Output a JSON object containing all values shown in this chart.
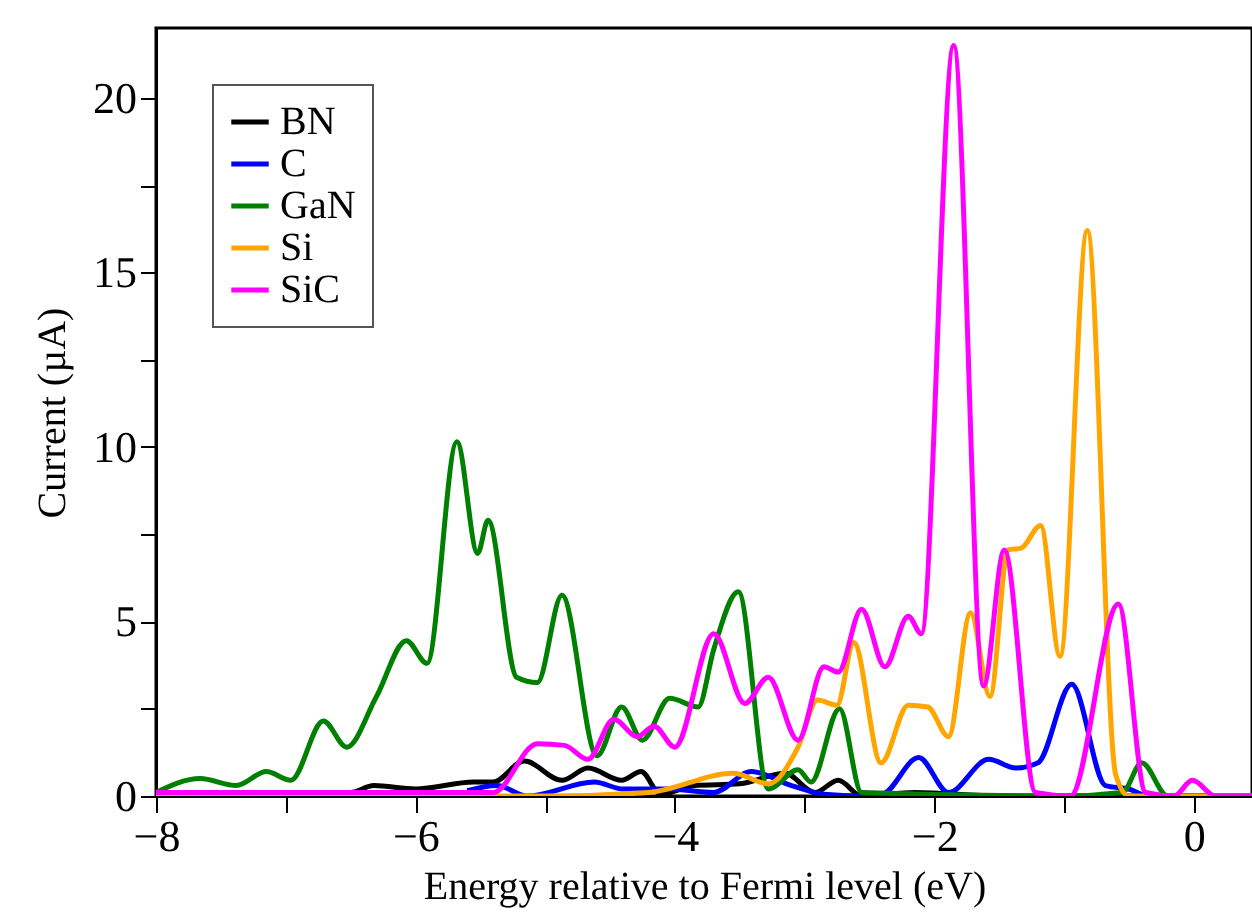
{
  "chart_data": {
    "type": "line",
    "xlabel": "Energy relative to Fermi level (eV)",
    "ylabel": "Current (µA)",
    "xlim": [
      -8,
      0.45
    ],
    "ylim": [
      0,
      22
    ],
    "xticks": [
      -8,
      {
        "value": -7,
        "label": null
      },
      -6,
      {
        "value": -5,
        "label": null
      },
      -4,
      {
        "value": -3,
        "label": null
      },
      -2,
      {
        "value": -1,
        "label": null
      },
      0
    ],
    "yticks": [
      0,
      {
        "value": 2.5,
        "label": null
      },
      5,
      {
        "value": 7.5,
        "label": null
      },
      10,
      {
        "value": 12.5,
        "label": null
      },
      15,
      {
        "value": 17.5,
        "label": null
      },
      20
    ],
    "grid": false,
    "legend": "top left",
    "marker": "none",
    "line_style": "solid",
    "series": [
      {
        "name": "BN",
        "color": "#000000",
        "x": [
          -8,
          -6.5,
          -6.32,
          -6,
          -5.55,
          -5.4,
          -5.16,
          -4.87,
          -4.67,
          -4.41,
          -4.26,
          -4.11,
          -3.85,
          -3.5,
          -3.15,
          -2.92,
          -2.74,
          -2.56,
          -2.15,
          -1.5,
          -0.5,
          0,
          0.45
        ],
        "values": [
          0.1,
          0.1,
          0.3,
          0.2,
          0.4,
          0.4,
          1.0,
          0.45,
          0.8,
          0.45,
          0.7,
          0.05,
          0.3,
          0.35,
          0.65,
          0.1,
          0.45,
          0,
          0.1,
          0,
          0,
          0,
          0
        ]
      },
      {
        "name": "C",
        "color": "#0000ff",
        "x": [
          -5.6,
          -5.37,
          -5.14,
          -4.62,
          -4.4,
          -4.05,
          -3.7,
          -3.41,
          -3.1,
          -2.85,
          -2.56,
          -2.4,
          -2.12,
          -1.89,
          -1.58,
          -1.37,
          -1.2,
          -0.94,
          -0.68,
          -0.5,
          -0.35,
          0,
          0.45
        ],
        "values": [
          0.15,
          0.3,
          0,
          0.4,
          0.2,
          0.2,
          0.1,
          0.7,
          0.3,
          0.05,
          0,
          0.05,
          1.1,
          0.1,
          1.05,
          0.8,
          0.95,
          3.2,
          0.3,
          0.2,
          0,
          0,
          0
        ]
      },
      {
        "name": "GaN",
        "color": "#008000",
        "x": [
          -8,
          -7.66,
          -7.38,
          -7.15,
          -6.96,
          -6.71,
          -6.53,
          -6.3,
          -6.07,
          -5.91,
          -5.68,
          -5.52,
          -5.44,
          -5.22,
          -5.06,
          -4.87,
          -4.6,
          -4.41,
          -4.25,
          -4.04,
          -3.82,
          -3.7,
          -3.51,
          -3.28,
          -3.05,
          -2.95,
          -2.73,
          -2.56,
          -1.0,
          -0.55,
          -0.4,
          -0.2,
          0,
          0.45
        ],
        "values": [
          0.1,
          0.5,
          0.3,
          0.7,
          0.45,
          2.15,
          1.4,
          2.85,
          4.45,
          3.8,
          10.15,
          6.95,
          7.9,
          3.4,
          3.25,
          5.75,
          1.15,
          2.55,
          1.6,
          2.8,
          2.55,
          4.2,
          5.85,
          0.2,
          0.75,
          0.4,
          2.5,
          0.1,
          0,
          0.1,
          0.95,
          0,
          0,
          0
        ]
      },
      {
        "name": "Si",
        "color": "#ffa500",
        "x": [
          -8,
          -5,
          -4.2,
          -3.55,
          -3.28,
          -3.05,
          -2.9,
          -2.75,
          -2.62,
          -2.41,
          -2.2,
          -2.05,
          -1.89,
          -1.72,
          -1.57,
          -1.43,
          -1.33,
          -1.18,
          -1.03,
          -0.82,
          -0.6,
          -0.5,
          0,
          0.45
        ],
        "values": [
          0,
          0,
          0.1,
          0.65,
          0.35,
          1.4,
          2.75,
          2.6,
          4.4,
          0.95,
          2.6,
          2.55,
          1.7,
          5.25,
          2.85,
          7.05,
          7.1,
          7.75,
          4.0,
          16.2,
          0.6,
          0,
          0,
          0
        ]
      },
      {
        "name": "SiC",
        "color": "#ff00ff",
        "x": [
          -8,
          -5.7,
          -5.4,
          -5.06,
          -4.85,
          -4.67,
          -4.47,
          -4.29,
          -4.16,
          -4.0,
          -3.7,
          -3.46,
          -3.28,
          -3.05,
          -2.85,
          -2.74,
          -2.56,
          -2.38,
          -2.2,
          -2.1,
          -1.85,
          -1.62,
          -1.46,
          -1.22,
          -0.95,
          -0.58,
          -0.37,
          -0.15,
          -0.01,
          0.17,
          0.45
        ],
        "values": [
          0.1,
          0.1,
          0.1,
          1.5,
          1.45,
          1.05,
          2.2,
          1.7,
          2.0,
          1.4,
          4.65,
          2.65,
          3.4,
          1.6,
          3.7,
          3.55,
          5.35,
          3.7,
          5.15,
          4.65,
          21.5,
          3.15,
          7.05,
          0.1,
          0,
          5.5,
          0.1,
          0,
          0.45,
          0,
          0
        ]
      }
    ]
  }
}
